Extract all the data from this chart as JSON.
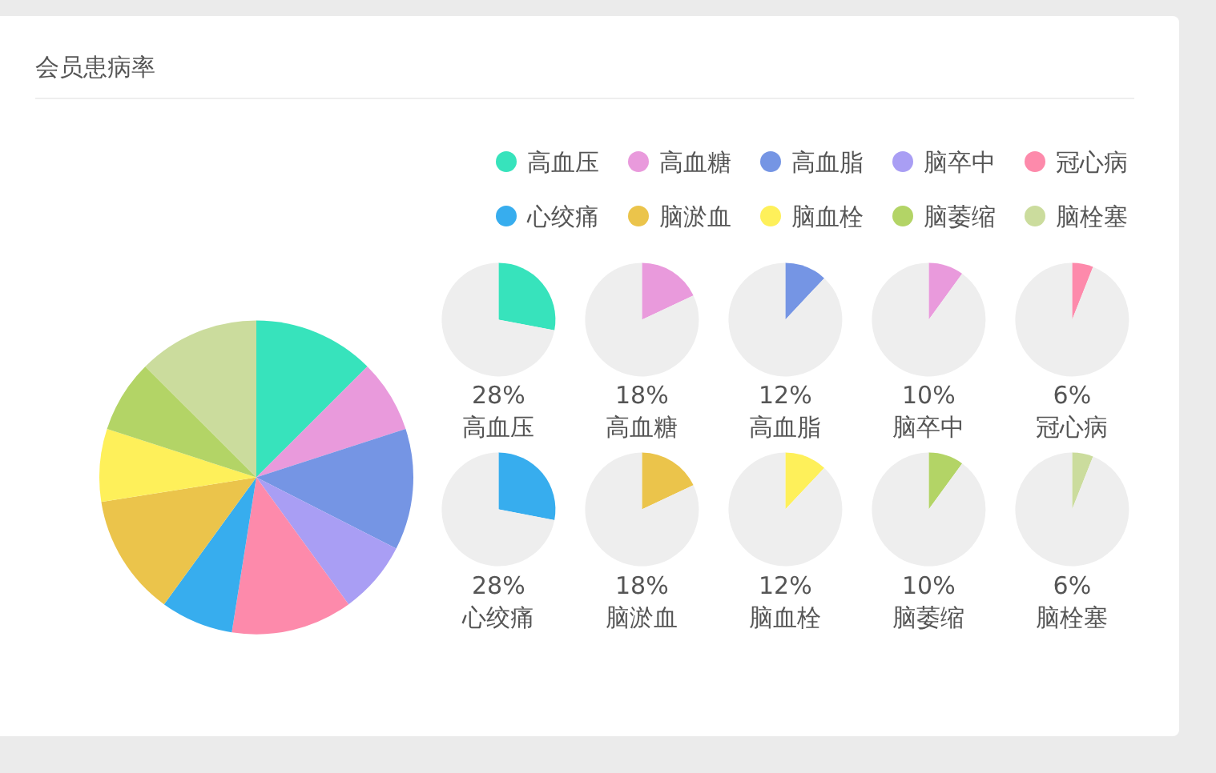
{
  "chart_data": [
    {
      "type": "pie",
      "title": "会员患病率",
      "categories": [
        "高血压",
        "高血糖",
        "高血脂",
        "脑卒中",
        "冠心病",
        "心绞痛",
        "脑淤血",
        "脑血栓",
        "脑萎缩",
        "脑栓塞"
      ],
      "values": [
        12.5,
        7.5,
        12.5,
        7.5,
        12.5,
        7.5,
        12.5,
        7.5,
        7.5,
        12.5
      ],
      "colors": [
        "#37e3bc",
        "#e99adc",
        "#7595e4",
        "#a99ef4",
        "#fd8aab",
        "#37adee",
        "#ebc44b",
        "#fef05a",
        "#b3d466",
        "#cbdc9d"
      ],
      "legend": "top right"
    },
    {
      "type": "pie",
      "title": "高血压",
      "categories": [
        null,
        null
      ],
      "values": [
        28,
        72
      ],
      "colors": [
        "#37e3bc",
        "#eeeeee"
      ],
      "annotations": [
        "28%"
      ]
    },
    {
      "type": "pie",
      "title": "高血糖",
      "categories": [
        null,
        null
      ],
      "values": [
        18,
        82
      ],
      "colors": [
        "#e99adc",
        "#eeeeee"
      ],
      "annotations": [
        "18%"
      ]
    },
    {
      "type": "pie",
      "title": "高血脂",
      "categories": [
        null,
        null
      ],
      "values": [
        12,
        88
      ],
      "colors": [
        "#7595e4",
        "#eeeeee"
      ],
      "annotations": [
        "12%"
      ]
    },
    {
      "type": "pie",
      "title": "脑卒中",
      "categories": [
        null,
        null
      ],
      "values": [
        10,
        90
      ],
      "colors": [
        "#e99adc",
        "#eeeeee"
      ],
      "annotations": [
        "10%"
      ]
    },
    {
      "type": "pie",
      "title": "冠心病",
      "categories": [
        null,
        null
      ],
      "values": [
        6,
        94
      ],
      "colors": [
        "#fd8aab",
        "#eeeeee"
      ],
      "annotations": [
        "6%"
      ]
    },
    {
      "type": "pie",
      "title": "心绞痛",
      "categories": [
        null,
        null
      ],
      "values": [
        28,
        72
      ],
      "colors": [
        "#37adee",
        "#eeeeee"
      ],
      "annotations": [
        "28%"
      ]
    },
    {
      "type": "pie",
      "title": "脑淤血",
      "categories": [
        null,
        null
      ],
      "values": [
        18,
        82
      ],
      "colors": [
        "#ebc44b",
        "#eeeeee"
      ],
      "annotations": [
        "18%"
      ]
    },
    {
      "type": "pie",
      "title": "脑血栓",
      "categories": [
        null,
        null
      ],
      "values": [
        12,
        88
      ],
      "colors": [
        "#fef05a",
        "#eeeeee"
      ],
      "annotations": [
        "12%"
      ]
    },
    {
      "type": "pie",
      "title": "脑萎缩",
      "categories": [
        null,
        null
      ],
      "values": [
        10,
        90
      ],
      "colors": [
        "#b3d466",
        "#eeeeee"
      ],
      "annotations": [
        "10%"
      ]
    },
    {
      "type": "pie",
      "title": "脑栓塞",
      "categories": [
        null,
        null
      ],
      "values": [
        6,
        94
      ],
      "colors": [
        "#cbdc9d",
        "#eeeeee"
      ],
      "annotations": [
        "6%"
      ]
    }
  ]
}
